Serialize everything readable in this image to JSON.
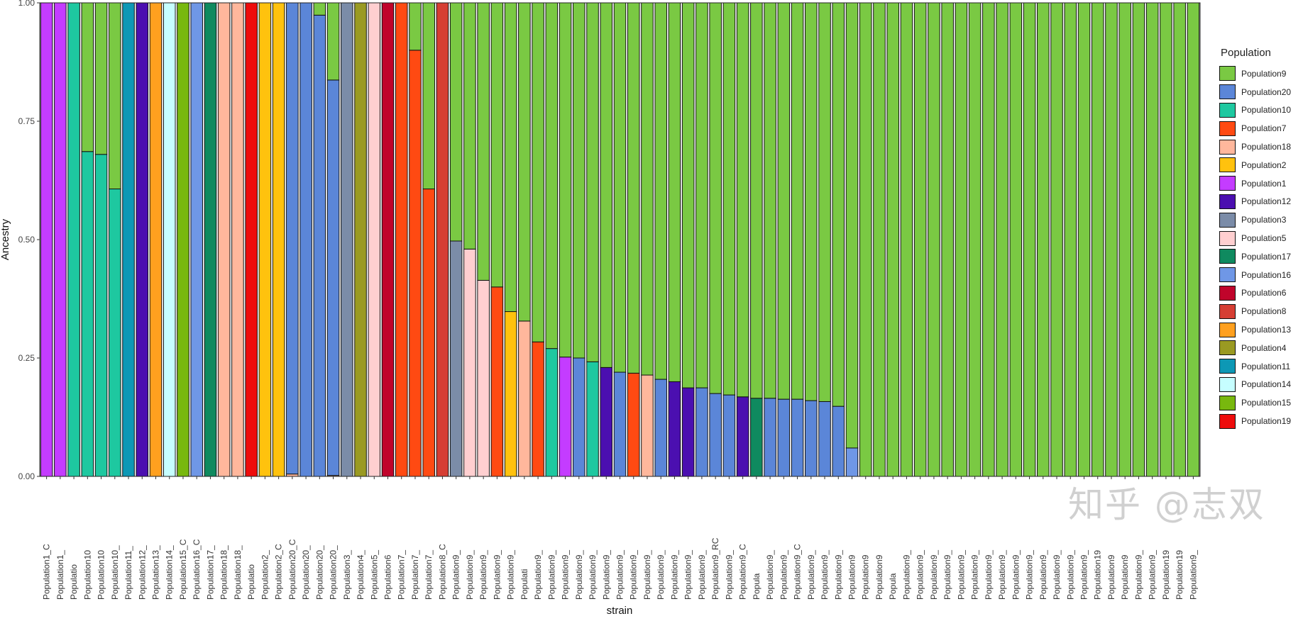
{
  "chart_data": {
    "type": "bar",
    "stacked": true,
    "title": "",
    "xlabel": "strain",
    "ylabel": "Ancestry",
    "ylim": [
      0,
      1
    ],
    "y_ticks": [
      "0.00",
      "0.25",
      "0.50",
      "0.75",
      "1.00"
    ],
    "legend_title": "Population",
    "legend_position": "right",
    "colors": {
      "Population9": "#7ac943",
      "Population20": "#5b86d8",
      "Population10": "#1ec8a0",
      "Population7": "#ff4a12",
      "Population18": "#ffb79c",
      "Population2": "#ffc20e",
      "Population1": "#c43cff",
      "Population12": "#4b0fb0",
      "Population3": "#7b8ca8",
      "Population5": "#ffcfd0",
      "Population17": "#0f8a5f",
      "Population16": "#6f97e6",
      "Population6": "#c0042b",
      "Population8": "#d63e33",
      "Population13": "#ffa01f",
      "Population4": "#9a9a22",
      "Population11": "#0d98b5",
      "Population14": "#c6feff",
      "Population15": "#78b80e",
      "Population19": "#ee0c0c"
    },
    "legend": [
      "Population9",
      "Population20",
      "Population10",
      "Population7",
      "Population18",
      "Population2",
      "Population1",
      "Population12",
      "Population3",
      "Population5",
      "Population17",
      "Population16",
      "Population6",
      "Population8",
      "Population13",
      "Population4",
      "Population11",
      "Population14",
      "Population15",
      "Population19"
    ],
    "categories": [
      "Population1_C",
      "Population1_",
      "Populatio",
      "Population10",
      "Population10",
      "Population10_",
      "Population11_",
      "Population12_",
      "Population13_",
      "Population14_",
      "Population15_C",
      "Population16_C",
      "Population17_",
      "Population18_",
      "Population18_",
      "Populatio",
      "Population2_",
      "Population2_C",
      "Population20_C",
      "Population20_",
      "Population20_",
      "Population20_",
      "Population3_",
      "Population4_",
      "Population5_",
      "Population6",
      "Population7_",
      "Population7_",
      "Population7_",
      "Population8_C",
      "Population9_",
      "Population9_",
      "Population9_",
      "Population9_",
      "Population9_",
      "Populati",
      "Population9_",
      "Population9_",
      "Population9_",
      "Population9_",
      "Population9_",
      "Population9_",
      "Population9_",
      "Population9_",
      "Population9_",
      "Population9_",
      "Population9_",
      "Population9_",
      "Population9_",
      "Population9_RC",
      "Population9_",
      "Population9_C",
      "Popula",
      "Population9_",
      "Population9_",
      "Population9_C",
      "Population9_",
      "Population9_",
      "Population9_",
      "Population9",
      "Population9",
      "Population9",
      "Popula",
      "Population9_",
      "Population9_",
      "Population9_",
      "Population9_",
      "Population9_",
      "Population9_",
      "Population9_",
      "Population9_",
      "Population9_",
      "Population9_",
      "Population9_",
      "Population9_",
      "Population9_",
      "Population9_",
      "Population19",
      "Population9",
      "Population9",
      "Population9_",
      "Population9_",
      "Population19",
      "Population19",
      "Population9_"
    ],
    "values": [
      {
        "Population1": 1.0
      },
      {
        "Population1": 1.0
      },
      {
        "Population10": 1.0
      },
      {
        "Population10": 0.686,
        "Population9": 0.314
      },
      {
        "Population10": 0.68,
        "Population9": 0.32
      },
      {
        "Population10": 0.607,
        "Population9": 0.393
      },
      {
        "Population11": 1.0
      },
      {
        "Population12": 1.0
      },
      {
        "Population13": 1.0
      },
      {
        "Population14": 1.0
      },
      {
        "Population15": 1.0
      },
      {
        "Population16": 1.0
      },
      {
        "Population17": 1.0
      },
      {
        "Population18": 1.0
      },
      {
        "Population18": 1.0
      },
      {
        "Population19": 1.0
      },
      {
        "Population2": 1.0
      },
      {
        "Population2": 1.0
      },
      {
        "Population18": 0.005,
        "Population20": 0.995
      },
      {
        "Population20": 1.0
      },
      {
        "Population20": 0.974,
        "Population9": 0.026
      },
      {
        "Population18": 0.002,
        "Population20": 0.835,
        "Population9": 0.163
      },
      {
        "Population3": 1.0
      },
      {
        "Population4": 1.0
      },
      {
        "Population5": 1.0
      },
      {
        "Population6": 1.0
      },
      {
        "Population7": 1.0
      },
      {
        "Population7": 0.9,
        "Population9": 0.1
      },
      {
        "Population7": 0.607,
        "Population9": 0.393
      },
      {
        "Population8": 1.0
      },
      {
        "Population3": 0.497,
        "Population9": 0.503
      },
      {
        "Population5": 0.48,
        "Population9": 0.52
      },
      {
        "Population5": 0.414,
        "Population9": 0.586
      },
      {
        "Population7": 0.4,
        "Population9": 0.6
      },
      {
        "Population2": 0.348,
        "Population9": 0.652
      },
      {
        "Population18": 0.328,
        "Population9": 0.672
      },
      {
        "Population7": 0.284,
        "Population9": 0.716
      },
      {
        "Population10": 0.27,
        "Population9": 0.73
      },
      {
        "Population1": 0.252,
        "Population9": 0.748
      },
      {
        "Population20": 0.25,
        "Population9": 0.75
      },
      {
        "Population10": 0.242,
        "Population9": 0.758
      },
      {
        "Population12": 0.23,
        "Population9": 0.77
      },
      {
        "Population20": 0.22,
        "Population9": 0.78
      },
      {
        "Population7": 0.218,
        "Population9": 0.782
      },
      {
        "Population18": 0.214,
        "Population9": 0.786
      },
      {
        "Population20": 0.205,
        "Population9": 0.795
      },
      {
        "Population12": 0.2,
        "Population9": 0.8
      },
      {
        "Population12": 0.187,
        "Population9": 0.813
      },
      {
        "Population20": 0.187,
        "Population9": 0.813
      },
      {
        "Population20": 0.175,
        "Population9": 0.825
      },
      {
        "Population20": 0.172,
        "Population9": 0.828
      },
      {
        "Population12": 0.168,
        "Population9": 0.832
      },
      {
        "Population17": 0.165,
        "Population9": 0.835
      },
      {
        "Population20": 0.165,
        "Population9": 0.835
      },
      {
        "Population20": 0.163,
        "Population9": 0.837
      },
      {
        "Population20": 0.163,
        "Population9": 0.837
      },
      {
        "Population20": 0.16,
        "Population9": 0.84
      },
      {
        "Population20": 0.158,
        "Population9": 0.842
      },
      {
        "Population20": 0.148,
        "Population9": 0.852
      },
      {
        "Population16": 0.06,
        "Population9": 0.94
      },
      {
        "Population9": 1.0
      },
      {
        "Population9": 1.0
      },
      {
        "Population9": 1.0
      },
      {
        "Population9": 1.0
      },
      {
        "Population9": 1.0
      },
      {
        "Population9": 1.0
      },
      {
        "Population9": 1.0
      },
      {
        "Population9": 1.0
      },
      {
        "Population9": 1.0
      },
      {
        "Population9": 1.0
      },
      {
        "Population9": 1.0
      },
      {
        "Population9": 1.0
      },
      {
        "Population9": 1.0
      },
      {
        "Population9": 1.0
      },
      {
        "Population9": 1.0
      },
      {
        "Population9": 1.0
      },
      {
        "Population9": 1.0
      },
      {
        "Population9": 1.0
      },
      {
        "Population9": 1.0
      },
      {
        "Population9": 1.0
      },
      {
        "Population9": 1.0
      },
      {
        "Population9": 1.0
      },
      {
        "Population9": 1.0
      },
      {
        "Population9": 1.0
      },
      {
        "Population9": 1.0
      }
    ]
  },
  "watermark": "知乎 @志双"
}
